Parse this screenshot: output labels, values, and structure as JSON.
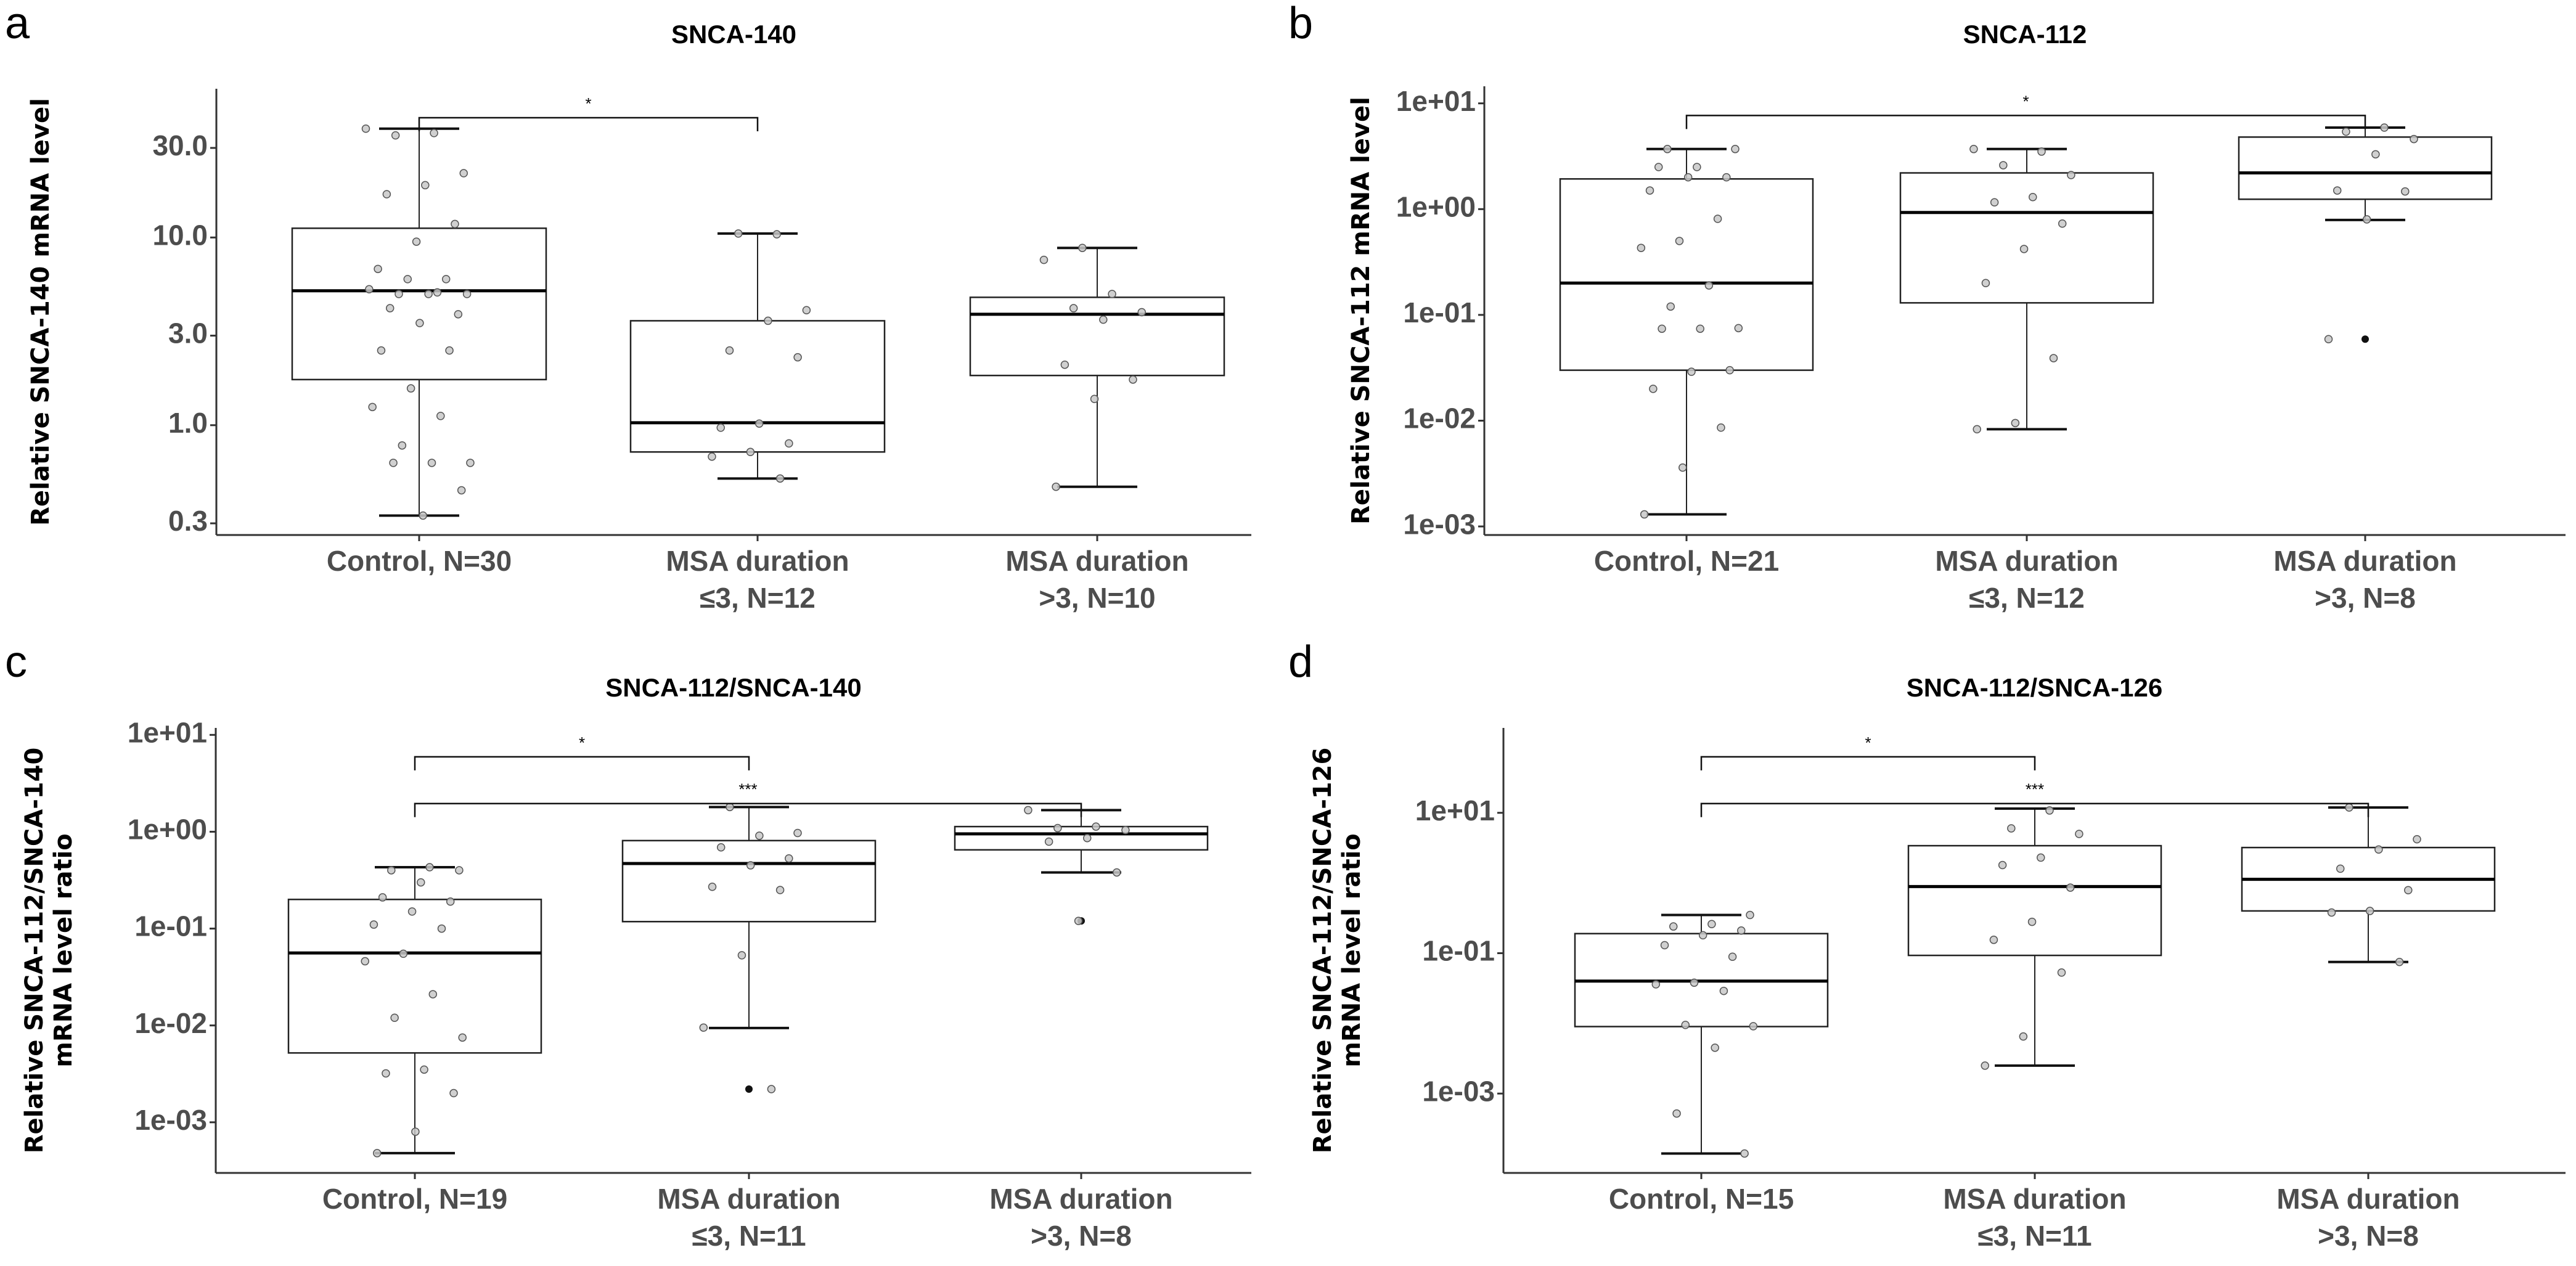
{
  "chart_data": [
    {
      "type": "box",
      "panel_label": "a",
      "title": "SNCA-140",
      "ylabel": [
        "Relative SNCA-140 mRNA level"
      ],
      "yscale": "log",
      "ylim": [
        0.26,
        62
      ],
      "yticks": [
        0.3,
        1,
        3,
        10,
        30
      ],
      "ytick_labels": [
        "0.3",
        "1.0",
        "3.0",
        "10.0",
        "30.0"
      ],
      "categories": [
        [
          "Control, N=30"
        ],
        [
          "MSA duration",
          "≤3, N=12"
        ],
        [
          "MSA duration",
          ">3, N=10"
        ]
      ],
      "boxes": [
        {
          "whisker_low": 0.33,
          "q1": 1.75,
          "median": 5.2,
          "q3": 11.2,
          "whisker_high": 38,
          "outliers": []
        },
        {
          "whisker_low": 0.52,
          "q1": 0.72,
          "median": 1.03,
          "q3": 3.6,
          "whisker_high": 10.5,
          "outliers": []
        },
        {
          "whisker_low": 0.47,
          "q1": 1.84,
          "median": 3.9,
          "q3": 4.8,
          "whisker_high": 8.8,
          "outliers": []
        }
      ],
      "points": [
        [
          38,
          36,
          35,
          22,
          19,
          17,
          11.8,
          9.5,
          6.8,
          6.0,
          6.0,
          5.3,
          5.1,
          5.0,
          5.0,
          5.0,
          4.2,
          3.9,
          3.5,
          2.5,
          2.5,
          1.57,
          1.25,
          1.12,
          0.78,
          0.63,
          0.63,
          0.63,
          0.45,
          0.33
        ],
        [
          10.4,
          10.5,
          4.1,
          3.6,
          2.5,
          2.3,
          1.02,
          0.97,
          0.8,
          0.72,
          0.68,
          0.52
        ],
        [
          8.8,
          7.6,
          5.0,
          4.2,
          4.0,
          3.65,
          2.1,
          1.75,
          1.38,
          0.47
        ]
      ],
      "significance": [
        {
          "groups": [
            0,
            1
          ],
          "label": "*"
        }
      ]
    },
    {
      "type": "box",
      "panel_label": "b",
      "title": "SNCA-112",
      "ylabel": [
        "Relative SNCA-112 mRNA level"
      ],
      "yscale": "log",
      "ylim": [
        0.00083,
        14.5
      ],
      "yticks": [
        0.001,
        0.01,
        0.1,
        1,
        10
      ],
      "ytick_labels": [
        "1e-03",
        "1e-02",
        "1e-01",
        "1e+00",
        "1e+01"
      ],
      "categories": [
        [
          "Control, N=21"
        ],
        [
          "MSA duration",
          "≤3, N=12"
        ],
        [
          "MSA duration",
          ">3, N=8"
        ]
      ],
      "boxes": [
        {
          "whisker_low": 0.0013,
          "q1": 0.03,
          "median": 0.2,
          "q3": 1.93,
          "whisker_high": 3.7,
          "outliers": []
        },
        {
          "whisker_low": 0.0083,
          "q1": 0.13,
          "median": 0.93,
          "q3": 2.2,
          "whisker_high": 3.7,
          "outliers": []
        },
        {
          "whisker_low": 0.79,
          "q1": 1.24,
          "median": 2.2,
          "q3": 4.8,
          "whisker_high": 5.9,
          "outliers": [
            0.059
          ]
        }
      ],
      "points": [
        [
          3.7,
          3.7,
          2.5,
          2.5,
          2.0,
          2.0,
          1.5,
          0.81,
          0.5,
          0.43,
          0.19,
          0.12,
          0.075,
          0.074,
          0.074,
          0.03,
          0.029,
          0.02,
          0.0086,
          0.0036,
          0.0013
        ],
        [
          3.7,
          3.5,
          2.6,
          2.1,
          1.3,
          1.16,
          0.73,
          0.42,
          0.2,
          0.039,
          0.0095,
          0.0083
        ],
        [
          5.9,
          5.4,
          4.6,
          3.3,
          1.5,
          1.47,
          0.8,
          0.059
        ]
      ],
      "significance": [
        {
          "groups": [
            0,
            2
          ],
          "label": "*"
        }
      ]
    },
    {
      "type": "box",
      "panel_label": "c",
      "title": "SNCA-112/SNCA-140",
      "ylabel": [
        "Relative SNCA-112/SNCA-140",
        "mRNA level ratio"
      ],
      "yscale": "log",
      "ylim": [
        0.0003,
        11.8
      ],
      "yticks": [
        0.001,
        0.01,
        0.1,
        1,
        10
      ],
      "ytick_labels": [
        "1e-03",
        "1e-02",
        "1e-01",
        "1e+00",
        "1e+01"
      ],
      "categories": [
        [
          "Control, N=19"
        ],
        [
          "MSA duration",
          "≤3, N=11"
        ],
        [
          "MSA duration",
          ">3, N=8"
        ]
      ],
      "boxes": [
        {
          "whisker_low": 0.00048,
          "q1": 0.0052,
          "median": 0.056,
          "q3": 0.2,
          "whisker_high": 0.43,
          "outliers": []
        },
        {
          "whisker_low": 0.0094,
          "q1": 0.118,
          "median": 0.47,
          "q3": 0.81,
          "whisker_high": 1.8,
          "outliers": [
            0.0022
          ]
        },
        {
          "whisker_low": 0.38,
          "q1": 0.65,
          "median": 0.95,
          "q3": 1.13,
          "whisker_high": 1.67,
          "outliers": [
            0.12
          ]
        }
      ],
      "points": [
        [
          0.43,
          0.4,
          0.4,
          0.3,
          0.21,
          0.19,
          0.15,
          0.11,
          0.1,
          0.055,
          0.046,
          0.021,
          0.012,
          0.0075,
          0.0035,
          0.0032,
          0.002,
          0.0008,
          0.00048
        ],
        [
          1.8,
          0.97,
          0.91,
          0.69,
          0.53,
          0.45,
          0.27,
          0.25,
          0.053,
          0.0095,
          0.0022
        ],
        [
          1.67,
          1.13,
          1.09,
          1.04,
          0.86,
          0.79,
          0.38,
          0.12
        ]
      ],
      "significance": [
        {
          "groups": [
            0,
            1
          ],
          "label": "*"
        },
        {
          "groups": [
            0,
            2
          ],
          "label": "***"
        }
      ]
    },
    {
      "type": "box",
      "panel_label": "d",
      "title": "SNCA-112/SNCA-126",
      "ylabel": [
        "Relative SNCA-112/SNCA-126",
        "mRNA level ratio"
      ],
      "yscale": "log",
      "ylim": [
        7.4e-05,
        162
      ],
      "yticks": [
        0.001,
        0.1,
        10
      ],
      "ytick_labels": [
        "1e-03",
        "1e-01",
        "1e+01"
      ],
      "categories": [
        [
          "Control, N=15"
        ],
        [
          "MSA duration",
          "≤3, N=11"
        ],
        [
          "MSA duration",
          ">3, N=8"
        ]
      ],
      "boxes": [
        {
          "whisker_low": 0.00014,
          "q1": 0.009,
          "median": 0.04,
          "q3": 0.19,
          "whisker_high": 0.35,
          "outliers": []
        },
        {
          "whisker_low": 0.0025,
          "q1": 0.093,
          "median": 0.89,
          "q3": 3.4,
          "whisker_high": 11.5,
          "outliers": []
        },
        {
          "whisker_low": 0.075,
          "q1": 0.4,
          "median": 1.13,
          "q3": 3.2,
          "whisker_high": 11.9,
          "outliers": []
        }
      ],
      "points": [
        [
          0.35,
          0.26,
          0.24,
          0.21,
          0.18,
          0.13,
          0.089,
          0.038,
          0.036,
          0.029,
          0.0095,
          0.0091,
          0.0045,
          0.00052,
          0.00014
        ],
        [
          10.8,
          6.0,
          5.0,
          2.3,
          1.8,
          0.86,
          0.28,
          0.155,
          0.053,
          0.0065,
          0.0025
        ],
        [
          11.9,
          4.2,
          3.0,
          1.6,
          0.79,
          0.4,
          0.38,
          0.075
        ]
      ],
      "significance": [
        {
          "groups": [
            0,
            1
          ],
          "label": "*"
        },
        {
          "groups": [
            0,
            2
          ],
          "label": "***"
        }
      ]
    }
  ]
}
